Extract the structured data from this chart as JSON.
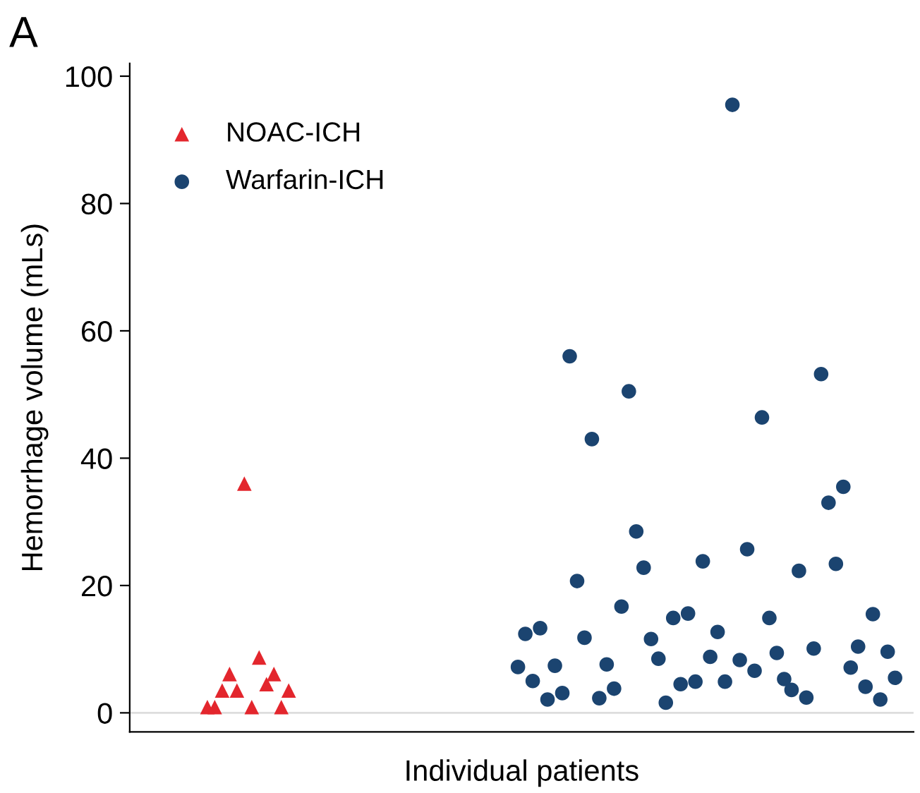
{
  "chart_data": {
    "type": "scatter",
    "title": "A",
    "xlabel": "Individual patients",
    "ylabel": "Hemorrhage volume (mLs)",
    "ylim": [
      -3,
      102
    ],
    "yticks": [
      0,
      20,
      40,
      60,
      80,
      100
    ],
    "tick_labels": "y",
    "grid": false,
    "legend": "top left",
    "ref_lines": [
      {
        "axis": "y",
        "value": 0,
        "color": "#dddddd"
      }
    ],
    "categories": [
      null,
      null,
      null,
      null,
      null,
      null,
      null,
      null,
      null,
      null,
      null,
      null,
      null,
      null,
      null,
      null,
      null,
      null,
      null,
      null,
      null,
      null,
      null,
      null,
      null,
      null,
      null,
      null,
      null,
      null,
      null,
      null,
      null,
      null,
      null,
      null,
      null,
      null,
      null,
      null,
      null,
      null,
      null,
      null,
      null,
      null,
      null,
      null,
      null,
      null,
      null,
      null,
      null,
      null,
      null,
      null,
      null,
      null,
      null,
      null,
      null,
      null,
      null,
      null,
      null,
      null,
      null,
      null,
      null,
      null,
      null,
      null,
      null,
      null,
      null,
      null,
      null,
      null,
      null,
      null,
      null,
      null,
      null,
      null,
      null,
      null,
      null,
      null,
      null,
      null,
      null,
      null,
      null,
      null,
      null,
      null,
      null,
      null,
      null,
      null,
      null,
      null,
      null,
      null,
      null,
      null
    ],
    "series": [
      {
        "name": "NOAC-ICH",
        "color": "#e3262d",
        "marker": "triangle",
        "values": [
          null,
          null,
          null,
          null,
          null,
          null,
          null,
          null,
          null,
          null,
          0.9,
          0.9,
          3.5,
          6.1,
          3.5,
          36.0,
          0.9,
          8.7,
          4.5,
          6.1,
          0.9,
          3.5,
          null,
          null,
          null,
          null,
          null,
          null,
          null,
          null,
          null,
          null,
          null,
          null,
          null,
          null,
          null,
          null,
          null,
          null,
          null,
          null,
          null,
          null,
          null,
          null,
          null,
          null,
          null,
          null,
          null,
          null,
          null,
          null,
          null,
          null,
          null,
          null,
          null,
          null,
          null,
          null,
          null,
          null,
          null,
          null,
          null,
          null,
          null,
          null,
          null,
          null,
          null,
          null,
          null,
          null,
          null,
          null,
          null,
          null,
          null,
          null,
          null,
          null,
          null,
          null,
          null,
          null,
          null,
          null,
          null,
          null,
          null,
          null,
          null,
          null,
          null,
          null,
          null,
          null,
          null,
          null,
          null,
          null,
          null,
          null
        ]
      },
      {
        "name": "Warfarin-ICH",
        "color": "#1b4470",
        "marker": "circle",
        "values": [
          null,
          null,
          null,
          null,
          null,
          null,
          null,
          null,
          null,
          null,
          null,
          null,
          null,
          null,
          null,
          null,
          null,
          null,
          null,
          null,
          null,
          null,
          null,
          null,
          null,
          null,
          null,
          null,
          null,
          null,
          null,
          null,
          null,
          null,
          null,
          null,
          null,
          null,
          null,
          null,
          null,
          null,
          null,
          null,
          null,
          null,
          null,
          null,
          null,
          null,
          null,
          null,
          7.2,
          12.4,
          5.0,
          13.3,
          2.1,
          7.4,
          3.1,
          56.0,
          20.7,
          11.8,
          43.0,
          2.3,
          7.6,
          3.8,
          16.7,
          50.5,
          28.5,
          22.8,
          11.6,
          8.5,
          1.6,
          14.9,
          4.5,
          15.6,
          4.9,
          23.8,
          8.8,
          12.7,
          4.9,
          95.5,
          8.3,
          25.7,
          6.6,
          46.4,
          14.9,
          9.4,
          5.3,
          3.6,
          22.3,
          2.4,
          10.1,
          53.2,
          33.0,
          23.4,
          35.5,
          7.1,
          10.4,
          4.1,
          15.5,
          2.1,
          9.6,
          5.5,
          null,
          null
        ]
      }
    ]
  }
}
